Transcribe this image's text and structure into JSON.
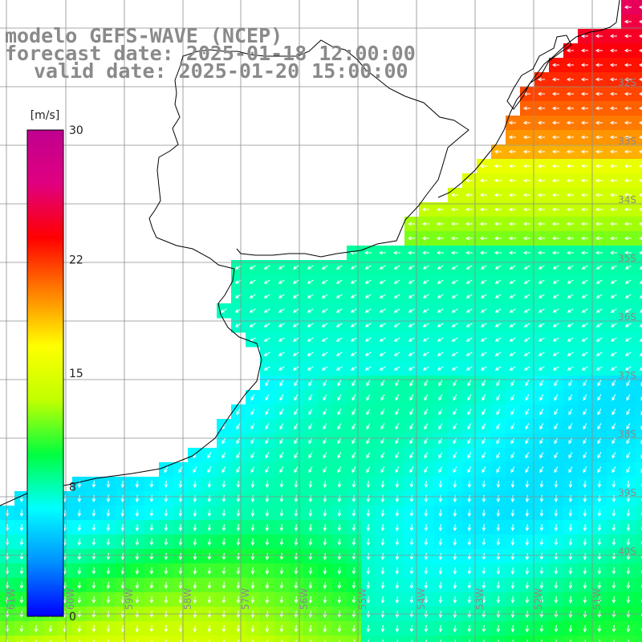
{
  "header": {
    "model": "modelo GEFS-WAVE (NCEP)",
    "forecast": "forecast date: 2025-01-18 12:00:00",
    "valid": "valid date: 2025-01-20 15:00:00"
  },
  "colorbar": {
    "unit": "[m/s]",
    "min": 0,
    "max": 30,
    "ticks": [
      "30",
      "22",
      "15",
      "8",
      "0"
    ],
    "stops": [
      "#0000ff",
      "#0090ff",
      "#00ffff",
      "#00ff40",
      "#c0ff00",
      "#ffff00",
      "#ff8000",
      "#ff0000",
      "#e0007f",
      "#c00090"
    ]
  },
  "map": {
    "lon_labels": [
      "61W",
      "60W",
      "59W",
      "58W",
      "57W",
      "56W",
      "55W",
      "54W",
      "53W",
      "52W",
      "51W"
    ],
    "lat_labels": [
      "32S",
      "33S",
      "34S",
      "35S",
      "36S",
      "37S",
      "38S",
      "39S",
      "40S"
    ],
    "colors": {
      "land": "#ffffff",
      "coast": "#000000",
      "grid": "#8c8c8c",
      "arrows": "#ffffff"
    }
  }
}
